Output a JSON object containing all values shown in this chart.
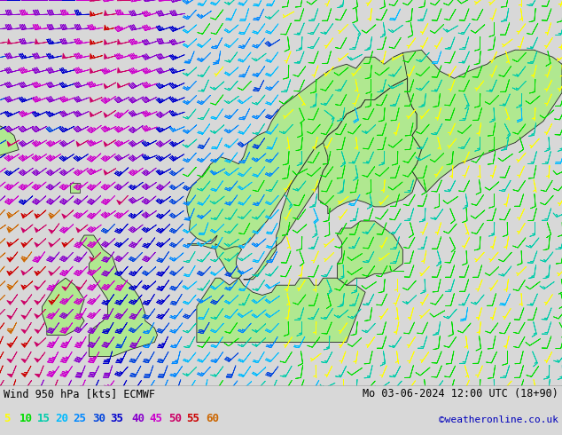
{
  "title_left": "Wind 950 hPa [kts] ECMWF",
  "title_right": "Mo 03-06-2024 12:00 UTC (18+90)",
  "credit": "©weatheronline.co.uk",
  "legend_values": [
    5,
    10,
    15,
    20,
    25,
    30,
    35,
    40,
    45,
    50,
    55,
    60
  ],
  "legend_colors": [
    "#ffff00",
    "#00dd00",
    "#00ccaa",
    "#00bbff",
    "#0088ff",
    "#0044dd",
    "#0000cc",
    "#8800cc",
    "#cc00cc",
    "#cc0066",
    "#cc0000",
    "#cc6600"
  ],
  "sea_color": "#d8d8d8",
  "land_color": "#b0e890",
  "border_color": "#222222",
  "bg_color": "#d8d8d8",
  "bottom_bg": "#ffffff",
  "title_color": "#000000",
  "credit_color": "#0000bb",
  "fig_width": 6.34,
  "fig_height": 4.9,
  "dpi": 100
}
